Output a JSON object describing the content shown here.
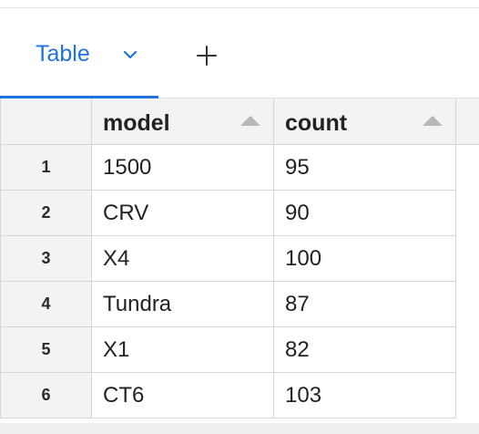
{
  "tabs": {
    "active_label": "Table",
    "active_icon": "chevron-down-icon",
    "add_icon": "plus-icon",
    "accent": "#1f73e0"
  },
  "table": {
    "columns": [
      {
        "label": "model",
        "sort_icon": "sort-ascending-icon"
      },
      {
        "label": "count",
        "sort_icon": "sort-ascending-icon"
      }
    ],
    "rows": [
      {
        "index": "1",
        "model": "1500",
        "count": "95"
      },
      {
        "index": "2",
        "model": "CRV",
        "count": "90"
      },
      {
        "index": "3",
        "model": "X4",
        "count": "100"
      },
      {
        "index": "4",
        "model": "Tundra",
        "count": "87"
      },
      {
        "index": "5",
        "model": "X1",
        "count": "82"
      },
      {
        "index": "6",
        "model": "CT6",
        "count": "103"
      }
    ]
  }
}
